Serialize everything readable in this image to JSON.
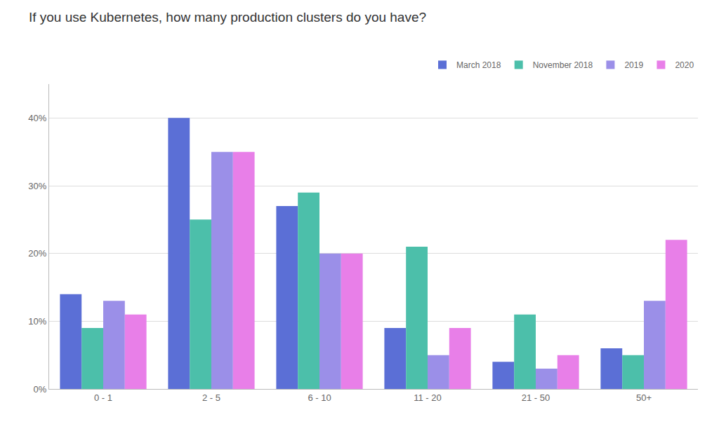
{
  "chart_data": {
    "type": "bar",
    "title": "If you use Kubernetes, how many production clusters do you have?",
    "categories": [
      "0 - 1",
      "2 - 5",
      "6 - 10",
      "11 - 20",
      "21 - 50",
      "50+"
    ],
    "series": [
      {
        "name": "March 2018",
        "color": "#5B6FD6",
        "values": [
          14,
          40,
          27,
          9,
          4,
          6
        ]
      },
      {
        "name": "November 2018",
        "color": "#4CBFAA",
        "values": [
          9,
          25,
          29,
          21,
          11,
          5
        ]
      },
      {
        "name": "2019",
        "color": "#9B8FE8",
        "values": [
          13,
          35,
          20,
          5,
          3,
          13
        ]
      },
      {
        "name": "2020",
        "color": "#E87FE8",
        "values": [
          11,
          35,
          20,
          9,
          5,
          22
        ]
      }
    ],
    "ylim": [
      0,
      45
    ],
    "yticks": [
      {
        "value": 0,
        "label": "0%"
      },
      {
        "value": 10,
        "label": "10%"
      },
      {
        "value": 20,
        "label": "20%"
      },
      {
        "value": 30,
        "label": "30%"
      },
      {
        "value": 40,
        "label": "40%"
      }
    ],
    "grid": true,
    "legend": "upper right"
  }
}
